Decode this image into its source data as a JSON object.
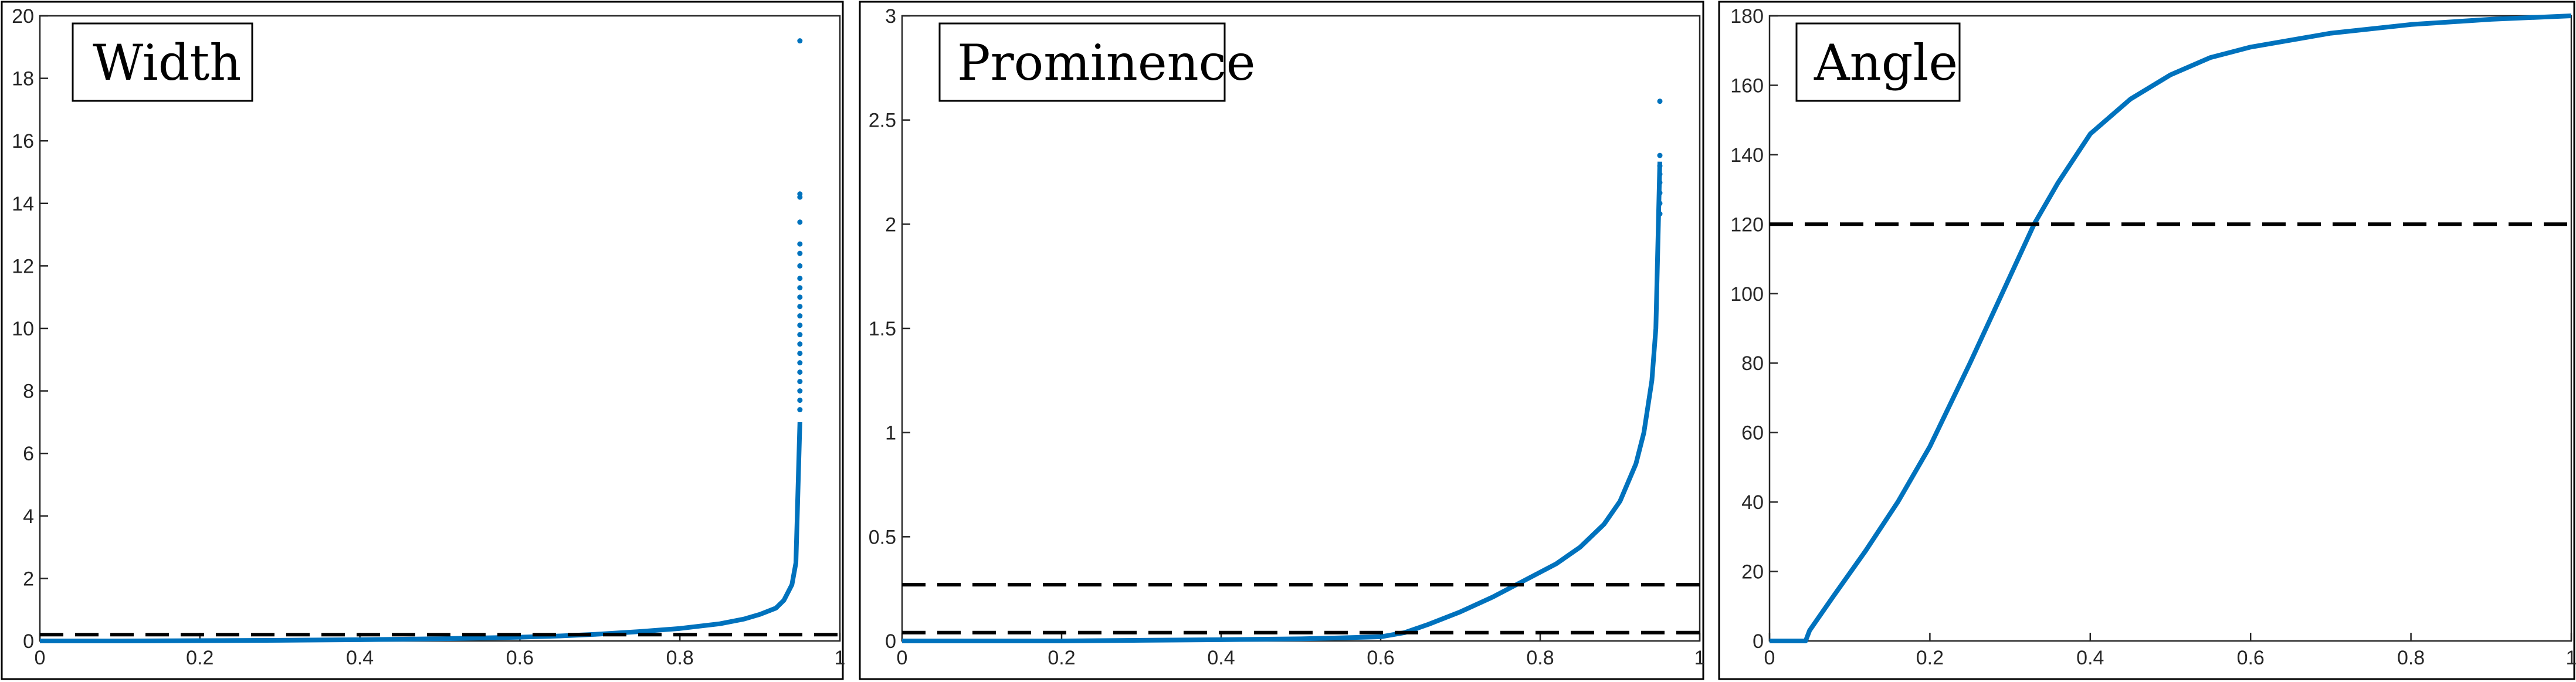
{
  "chart_data": [
    {
      "type": "line",
      "title": "",
      "label": "Width",
      "xlabel": "",
      "ylabel": "",
      "xlim": [
        0,
        1
      ],
      "ylim": [
        0,
        20
      ],
      "x_ticks": [
        0,
        0.2,
        0.4,
        0.6,
        0.8,
        1
      ],
      "x_tick_labels": [
        "0",
        "0.2",
        "0.4",
        "0.6",
        "0.8",
        "1"
      ],
      "y_ticks": [
        0,
        2,
        4,
        6,
        8,
        10,
        12,
        14,
        16,
        18,
        20
      ],
      "y_tick_labels": [
        "0",
        "2",
        "4",
        "6",
        "8",
        "10",
        "12",
        "14",
        "16",
        "18",
        "20"
      ],
      "grid": false,
      "series": [
        {
          "style": "solid",
          "color": "#0072BD",
          "x": [
            0,
            0.1,
            0.2,
            0.3,
            0.4,
            0.5,
            0.6,
            0.65,
            0.7,
            0.75,
            0.8,
            0.85,
            0.88,
            0.9,
            0.92,
            0.93,
            0.94,
            0.945,
            0.95
          ],
          "y": [
            0,
            0,
            0.01,
            0.02,
            0.04,
            0.07,
            0.12,
            0.16,
            0.22,
            0.3,
            0.4,
            0.55,
            0.7,
            0.85,
            1.05,
            1.3,
            1.8,
            2.5,
            7
          ]
        },
        {
          "style": "dashed",
          "color": "#000000",
          "x": [
            0,
            1
          ],
          "y": [
            0.2,
            0.2
          ]
        }
      ],
      "points": {
        "color": "#0072BD",
        "x": [
          0.95,
          0.95,
          0.95,
          0.95,
          0.95,
          0.95,
          0.95,
          0.95,
          0.95,
          0.95,
          0.95,
          0.95,
          0.95,
          0.95,
          0.95,
          0.95,
          0.95,
          0.95,
          0.95,
          0.95,
          0.95,
          0.95
        ],
        "y": [
          19.2,
          14.3,
          14.2,
          13.4,
          12.7,
          12.4,
          12.0,
          11.6,
          11.3,
          11.0,
          10.7,
          10.4,
          10.1,
          9.8,
          9.5,
          9.2,
          8.9,
          8.6,
          8.3,
          8.0,
          7.7,
          7.4
        ]
      }
    },
    {
      "type": "line",
      "title": "",
      "label": "Prominence",
      "xlabel": "",
      "ylabel": "",
      "xlim": [
        0,
        1
      ],
      "ylim": [
        0,
        3
      ],
      "x_ticks": [
        0,
        0.2,
        0.4,
        0.6,
        0.8,
        1
      ],
      "x_tick_labels": [
        "0",
        "0.2",
        "0.4",
        "0.6",
        "0.8",
        "1"
      ],
      "y_ticks": [
        0,
        0.5,
        1,
        1.5,
        2,
        2.5,
        3
      ],
      "y_tick_labels": [
        "0",
        "0.5",
        "1",
        "1.5",
        "2",
        "2.5",
        "3"
      ],
      "grid": false,
      "series": [
        {
          "style": "solid",
          "color": "#0072BD",
          "x": [
            0,
            0.1,
            0.2,
            0.3,
            0.4,
            0.5,
            0.55,
            0.6,
            0.63,
            0.66,
            0.7,
            0.74,
            0.78,
            0.82,
            0.85,
            0.88,
            0.9,
            0.92,
            0.93,
            0.94,
            0.945,
            0.95
          ],
          "y": [
            0,
            0,
            0,
            0.003,
            0.006,
            0.01,
            0.015,
            0.02,
            0.04,
            0.08,
            0.14,
            0.21,
            0.29,
            0.37,
            0.45,
            0.56,
            0.67,
            0.85,
            1.0,
            1.25,
            1.5,
            2.3
          ]
        },
        {
          "style": "dashed",
          "color": "#000000",
          "x": [
            0,
            1
          ],
          "y": [
            0.27,
            0.27
          ]
        },
        {
          "style": "dashed",
          "color": "#000000",
          "x": [
            0,
            1
          ],
          "y": [
            0.04,
            0.04
          ]
        }
      ],
      "points": {
        "color": "#0072BD",
        "x": [
          0.95,
          0.95,
          0.95,
          0.95,
          0.95,
          0.95,
          0.95,
          0.95
        ],
        "y": [
          2.59,
          2.33,
          2.28,
          2.24,
          2.2,
          2.15,
          2.1,
          2.05
        ]
      }
    },
    {
      "type": "line",
      "title": "",
      "label": "Angle",
      "xlabel": "",
      "ylabel": "",
      "xlim": [
        0,
        1
      ],
      "ylim": [
        0,
        180
      ],
      "x_ticks": [
        0,
        0.2,
        0.4,
        0.6,
        0.8,
        1
      ],
      "x_tick_labels": [
        "0",
        "0.2",
        "0.4",
        "0.6",
        "0.8",
        "1"
      ],
      "y_ticks": [
        0,
        20,
        40,
        60,
        80,
        100,
        120,
        140,
        160,
        180
      ],
      "y_tick_labels": [
        "0",
        "20",
        "40",
        "60",
        "80",
        "100",
        "120",
        "140",
        "160",
        "180"
      ],
      "grid": false,
      "series": [
        {
          "style": "solid",
          "color": "#0072BD",
          "x": [
            0,
            0.045,
            0.05,
            0.08,
            0.12,
            0.16,
            0.2,
            0.25,
            0.3,
            0.33,
            0.36,
            0.4,
            0.45,
            0.5,
            0.55,
            0.6,
            0.7,
            0.8,
            0.9,
            1
          ],
          "y": [
            0,
            0,
            3,
            13,
            26,
            40,
            56,
            80,
            105,
            120,
            132,
            146,
            156,
            163,
            168,
            171,
            175,
            177.5,
            179,
            180
          ]
        },
        {
          "style": "dashed",
          "color": "#000000",
          "x": [
            0,
            1
          ],
          "y": [
            120,
            120
          ]
        }
      ],
      "points": {
        "color": "#0072BD",
        "x": [],
        "y": []
      }
    }
  ]
}
